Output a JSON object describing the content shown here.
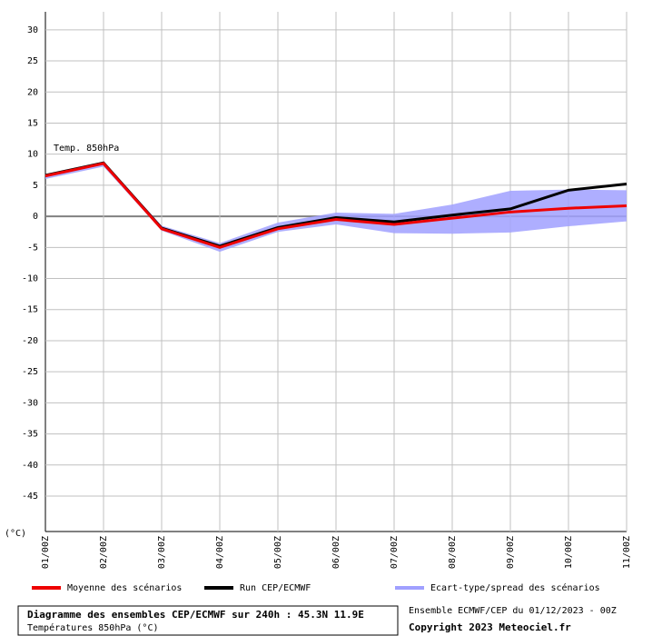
{
  "chart_data": {
    "type": "line",
    "annotation": "Temp. 850hPa",
    "y_label": "(°C)",
    "categories": [
      "01/00Z",
      "02/00Z",
      "03/00Z",
      "04/00Z",
      "05/00Z",
      "06/00Z",
      "07/00Z",
      "08/00Z",
      "09/00Z",
      "10/00Z",
      "11/00Z"
    ],
    "series": [
      {
        "name": "Moyenne des scénarios",
        "color": "#ee0000",
        "values": [
          6.5,
          8.5,
          -2,
          -5,
          -2,
          -0.5,
          -1.3,
          -0.3,
          0.7,
          1.3,
          1.7
        ]
      },
      {
        "name": "Run CEP/ECMWF",
        "color": "#000000",
        "values": [
          6.6,
          8.6,
          -1.9,
          -4.8,
          -1.8,
          -0.2,
          -0.9,
          0.2,
          1.2,
          4.2,
          5.2
        ]
      }
    ],
    "spread": {
      "name": "Ecart-type/spread des scénarios",
      "color": "#a0a0ff",
      "low": [
        6,
        8,
        -2.3,
        -5.7,
        -2.5,
        -1.3,
        -2.7,
        -2.8,
        -2.6,
        -1.6,
        -0.8
      ],
      "high": [
        6.8,
        8.8,
        -1.5,
        -4.3,
        -1,
        0.6,
        0.4,
        1.9,
        4.1,
        4.3,
        4.2
      ]
    },
    "ylim": [
      -50.7,
      32.9
    ],
    "yticks": [
      30,
      25,
      20,
      15,
      10,
      5,
      0,
      -5,
      -10,
      -15,
      -20,
      -25,
      -30,
      -35,
      -40,
      -45
    ],
    "grid": true,
    "footer": {
      "title": "Diagramme des ensembles CEP/ECMWF sur 240h : 45.3N 11.9E",
      "subtitle": "Températures 850hPa (°C)",
      "run": "Ensemble ECMWF/CEP du 01/12/2023 - 00Z",
      "copyright": "Copyright 2023 Meteociel.fr"
    }
  }
}
